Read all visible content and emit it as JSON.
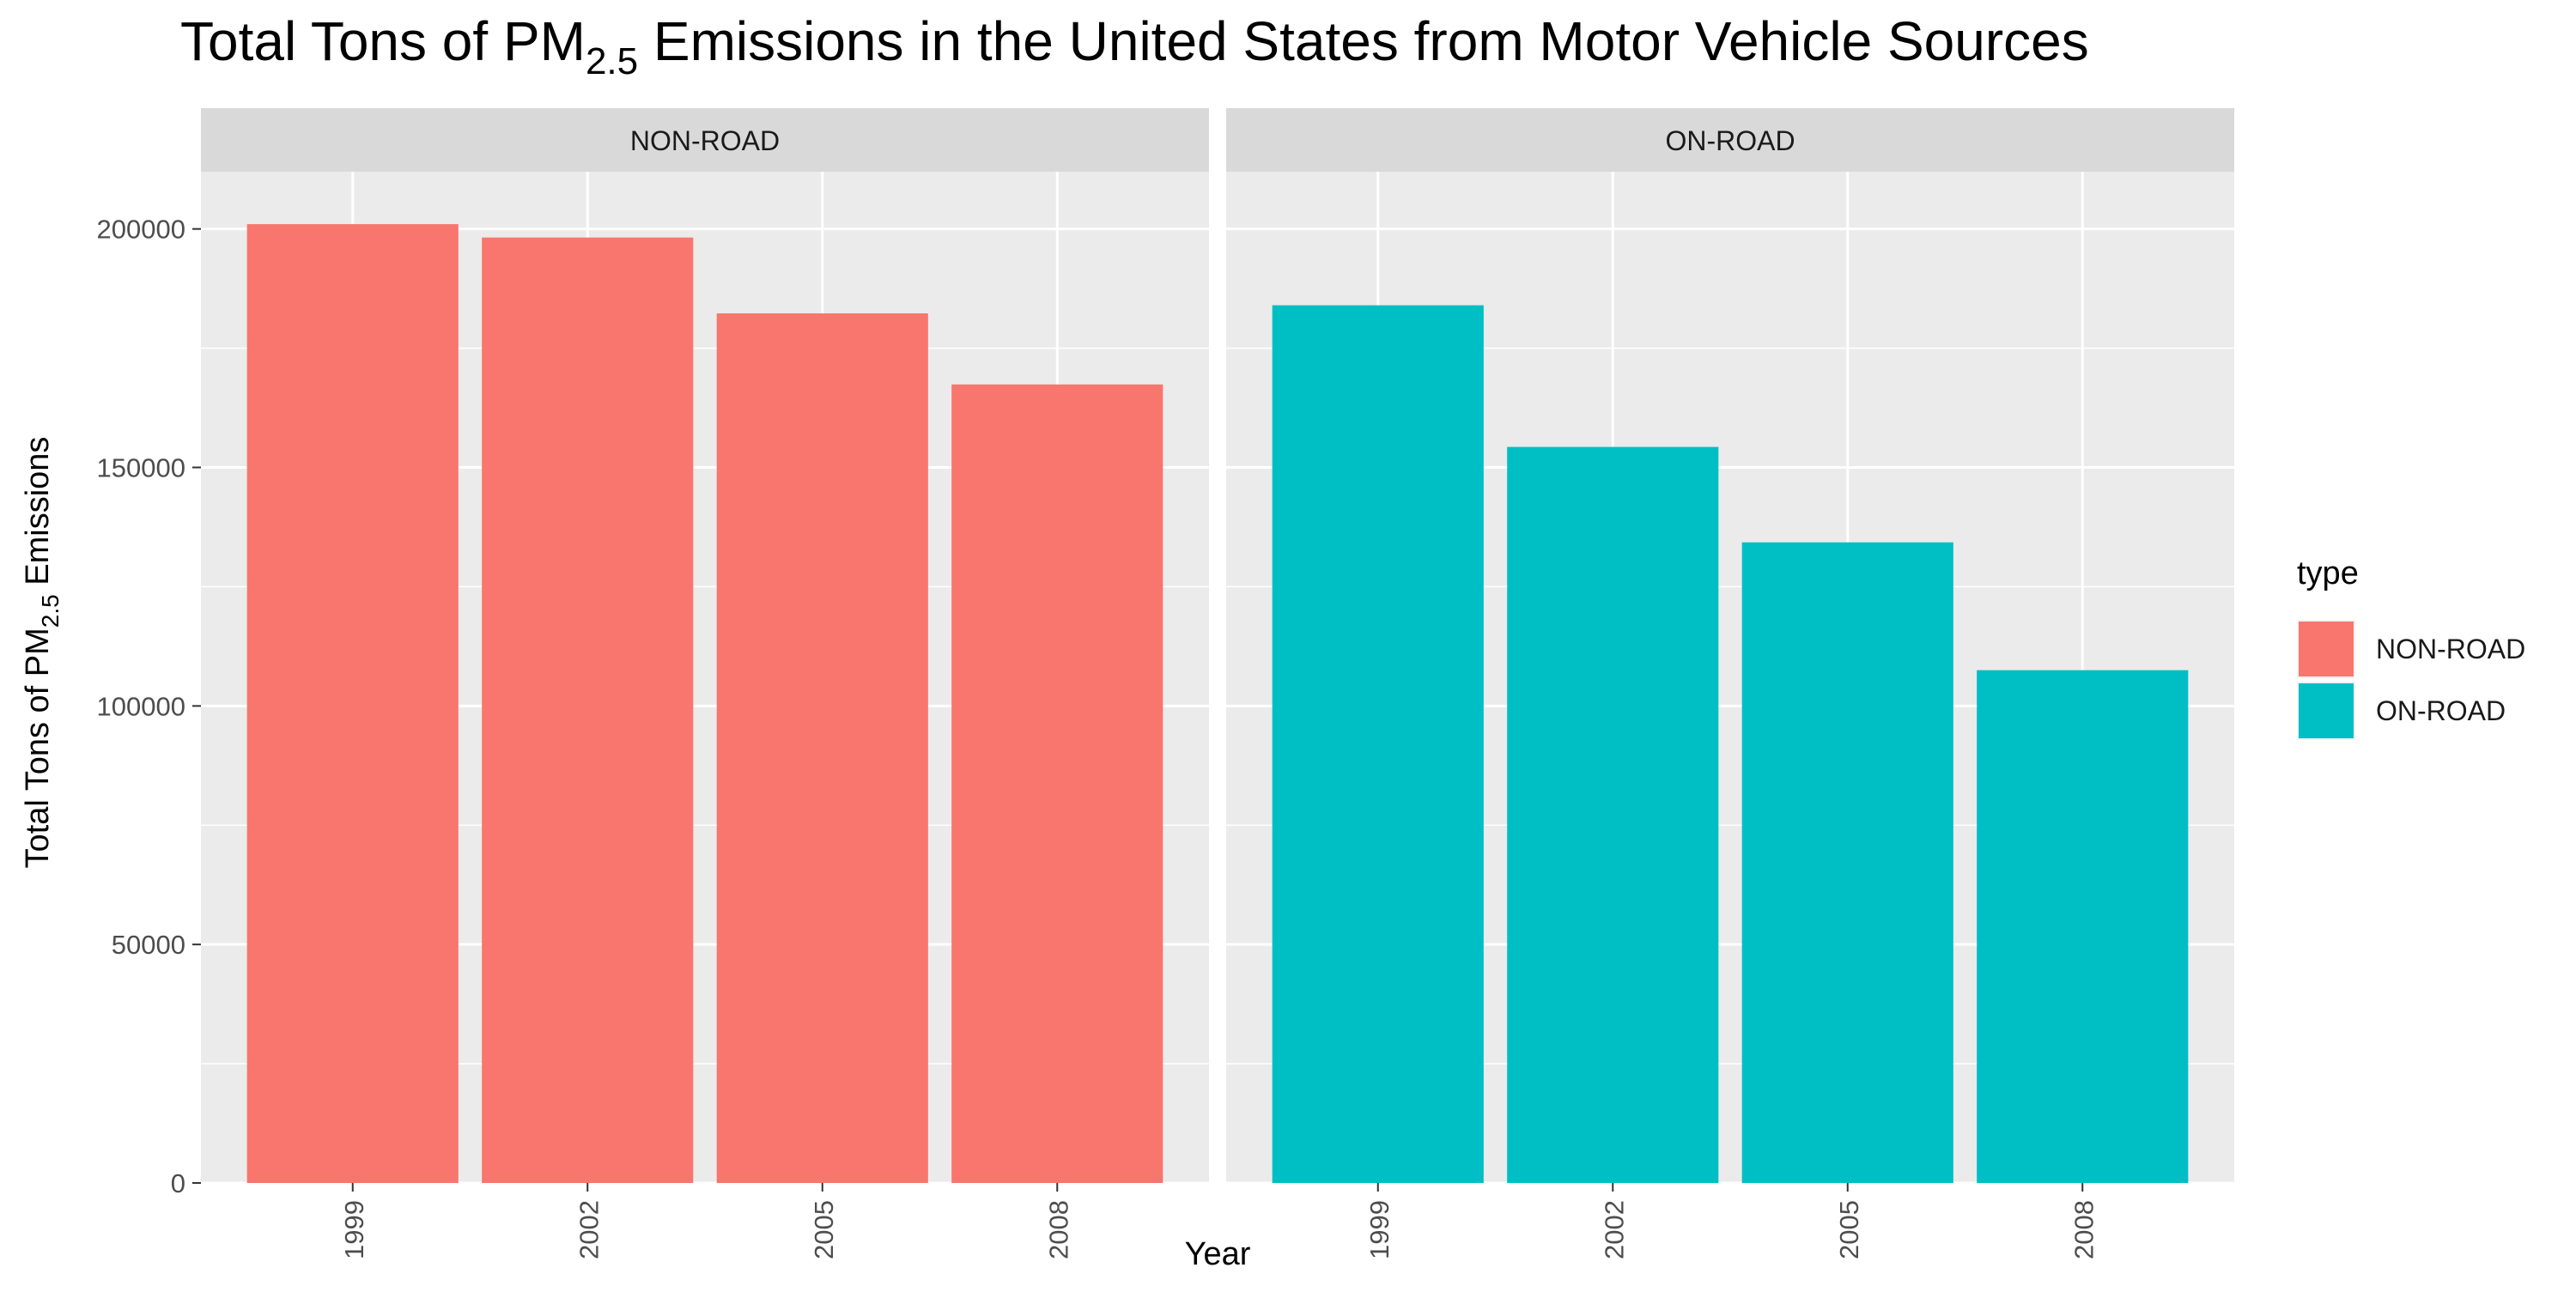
{
  "chart_data": {
    "type": "bar",
    "title": "Total Tons of PM",
    "title_subscript": "2.5",
    "title_rest": " Emissions in the United States from Motor Vehicle Sources",
    "xlabel": "Year",
    "ylabel": "Total Tons of PM",
    "ylabel_subscript": "2.5",
    "ylabel_rest": " Emissions",
    "ylim": [
      0,
      212000
    ],
    "y_ticks": [
      0,
      50000,
      100000,
      150000,
      200000
    ],
    "y_tick_labels": [
      "0",
      "50000",
      "100000",
      "150000",
      "200000"
    ],
    "categories": [
      "1999",
      "2002",
      "2005",
      "2008"
    ],
    "grid": true,
    "facets": [
      {
        "label": "NON-ROAD",
        "color": "#F8766D",
        "values": [
          201000,
          198200,
          182300,
          167400
        ]
      },
      {
        "label": "ON-ROAD",
        "color": "#00BFC4",
        "values": [
          184000,
          154300,
          134300,
          107500
        ]
      }
    ],
    "legend": {
      "title": "type",
      "position": "right",
      "items": [
        {
          "label": "NON-ROAD",
          "color": "#F8766D"
        },
        {
          "label": "ON-ROAD",
          "color": "#00BFC4"
        }
      ]
    },
    "colors": {
      "panel_background": "#EBEBEB",
      "strip_background": "#D9D9D9",
      "grid": "#FFFFFF"
    }
  }
}
